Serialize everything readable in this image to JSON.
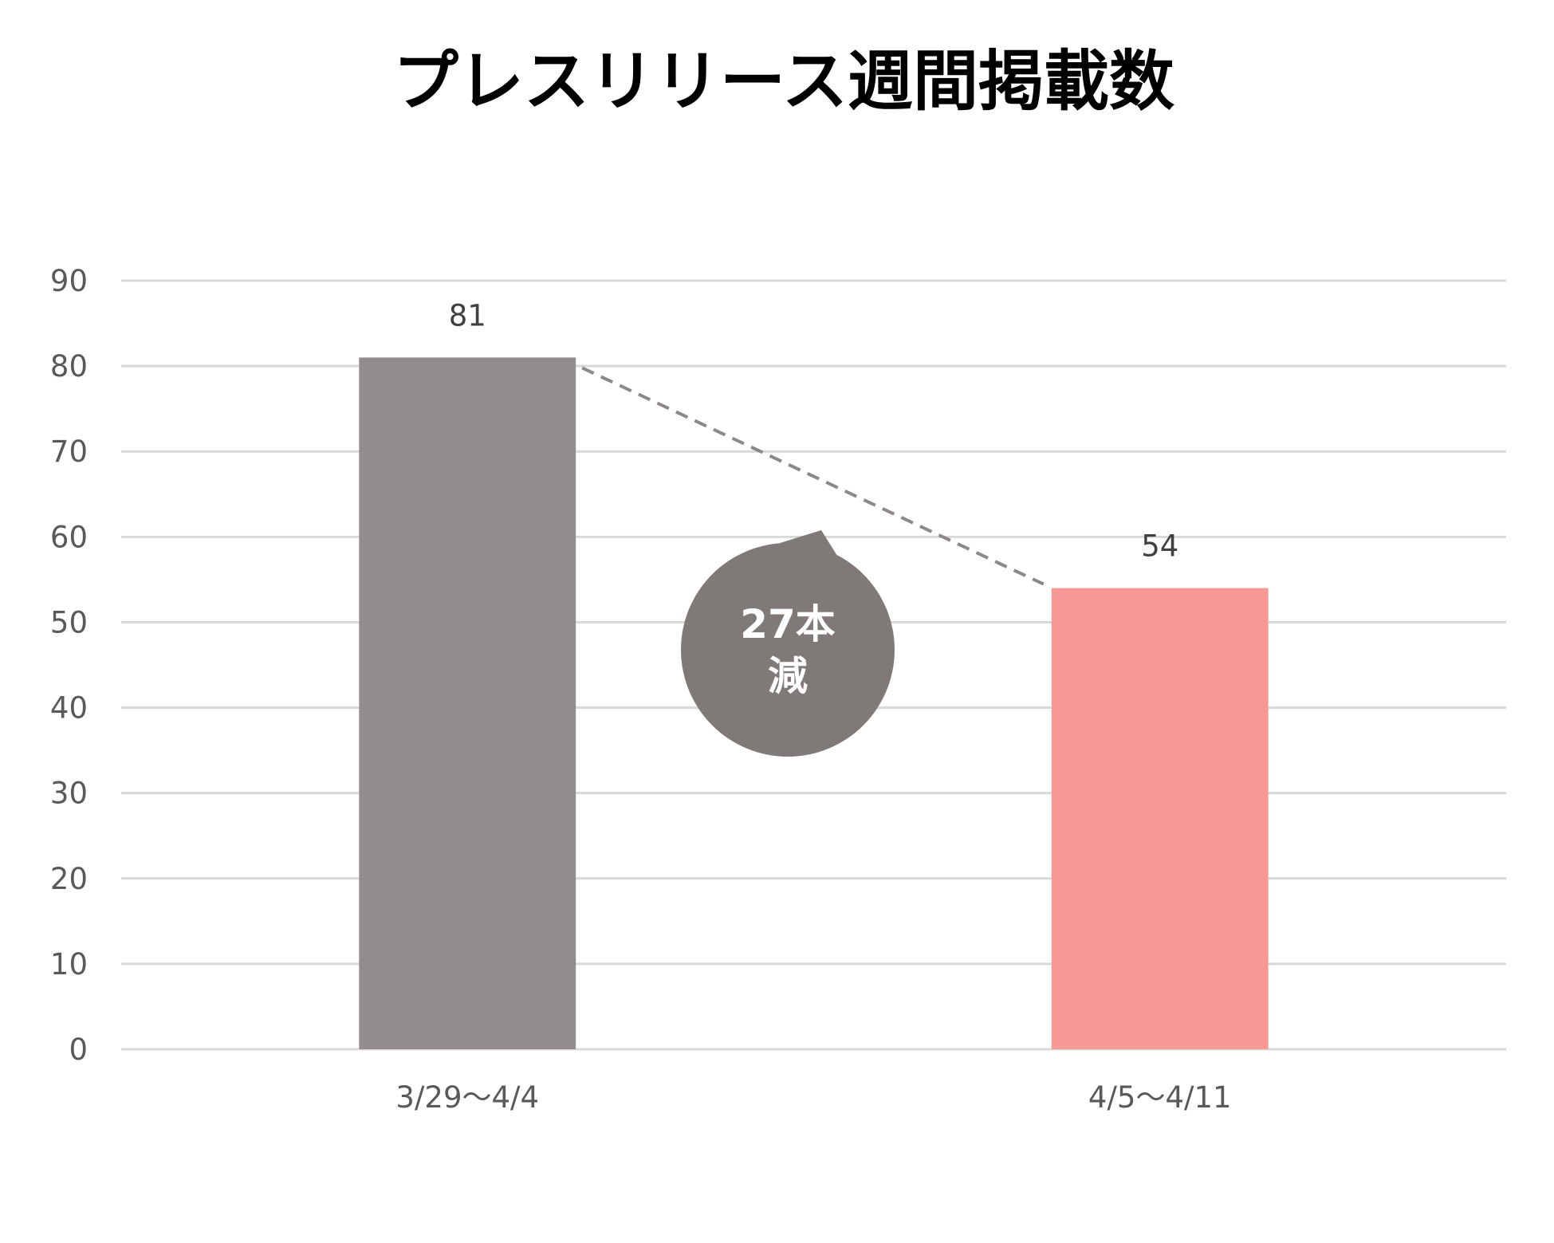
{
  "chart_data": {
    "type": "bar",
    "title": "プレスリリース週間掲載数",
    "categories": [
      "3/29～4/4",
      "4/5～4/11"
    ],
    "values": [
      81,
      54
    ],
    "value_labels": [
      "81",
      "54"
    ],
    "bar_colors": [
      "#928d8c",
      "#f89894"
    ],
    "ylim": [
      0,
      90
    ],
    "y_ticks": [
      0,
      10,
      20,
      30,
      40,
      50,
      60,
      70,
      80,
      90
    ],
    "y_tick_labels": [
      "0",
      "10",
      "20",
      "30",
      "40",
      "50",
      "60",
      "70",
      "80",
      "90"
    ],
    "grid": true,
    "grid_color": "#d9d9d9",
    "legend": "none",
    "xlabel": "",
    "ylabel": "",
    "annotation": {
      "lines": [
        "27本",
        "減"
      ],
      "color": "#7f7978",
      "text_color": "#ffffff",
      "connector": "dashed line between bar tops",
      "connector_color": "#8c8888"
    }
  }
}
